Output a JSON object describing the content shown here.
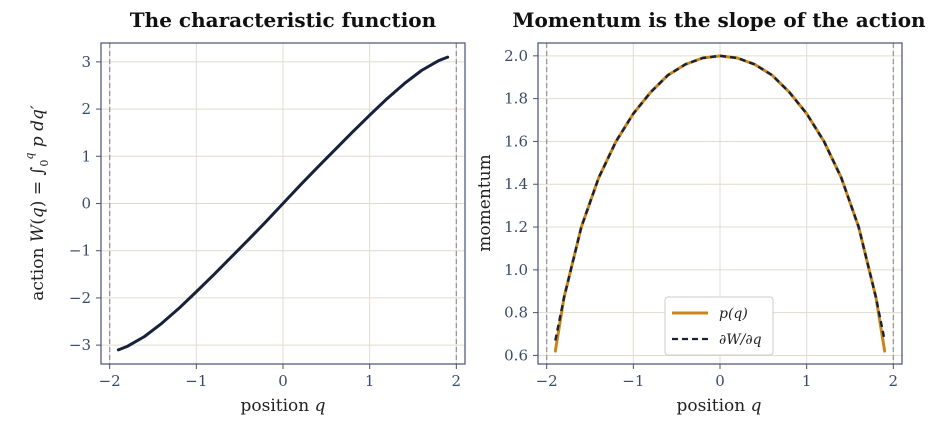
{
  "chart_data": [
    {
      "type": "line",
      "title": "The characteristic function",
      "xlabel": "position  q",
      "ylabel": "action  W(q) = ∫₀^q p dq′",
      "xlim": [
        -2.1,
        2.1
      ],
      "ylim": [
        -3.4,
        3.4
      ],
      "xticks": [
        -2,
        -1,
        0,
        1,
        2
      ],
      "xtick_labels": [
        "−2",
        "−1",
        "0",
        "1",
        "2"
      ],
      "yticks": [
        -3,
        -2,
        -1,
        0,
        1,
        2,
        3
      ],
      "ytick_labels": [
        "−3",
        "−2",
        "−1",
        "0",
        "1",
        "2",
        "3"
      ],
      "grid": true,
      "vertical_dashed_lines_x": [
        -2,
        2
      ],
      "series": [
        {
          "color": "#16213a",
          "x": [
            -1.9,
            -1.8,
            -1.6,
            -1.4,
            -1.2,
            -1.0,
            -0.8,
            -0.6,
            -0.4,
            -0.2,
            0,
            0.2,
            0.4,
            0.6,
            0.8,
            1.0,
            1.2,
            1.4,
            1.6,
            1.8,
            1.9
          ],
          "y": [
            -3.1,
            -3.03,
            -2.82,
            -2.54,
            -2.22,
            -1.87,
            -1.51,
            -1.14,
            -0.77,
            -0.39,
            0,
            0.39,
            0.77,
            1.14,
            1.51,
            1.87,
            2.22,
            2.54,
            2.82,
            3.03,
            3.1
          ]
        }
      ]
    },
    {
      "type": "line",
      "title": "Momentum is the slope of the action",
      "xlabel": "position  q",
      "ylabel": "momentum",
      "xlim": [
        -2.1,
        2.1
      ],
      "ylim": [
        0.56,
        2.06
      ],
      "xticks": [
        -2,
        -1,
        0,
        1,
        2
      ],
      "xtick_labels": [
        "−2",
        "−1",
        "0",
        "1",
        "2"
      ],
      "yticks": [
        0.6,
        0.8,
        1.0,
        1.2,
        1.4,
        1.6,
        1.8,
        2.0
      ],
      "ytick_labels": [
        "0.6",
        "0.8",
        "1.0",
        "1.2",
        "1.4",
        "1.6",
        "1.8",
        "2.0"
      ],
      "grid": true,
      "vertical_dashed_lines_x": [
        -2,
        2
      ],
      "legend_position": "lower center",
      "series": [
        {
          "name": "p(q)",
          "color": "#c8861a",
          "style": "solid",
          "x": [
            -1.9,
            -1.8,
            -1.6,
            -1.4,
            -1.2,
            -1.0,
            -0.8,
            -0.6,
            -0.4,
            -0.2,
            0,
            0.2,
            0.4,
            0.6,
            0.8,
            1.0,
            1.2,
            1.4,
            1.6,
            1.8,
            1.9
          ],
          "y": [
            0.62,
            0.87,
            1.2,
            1.43,
            1.6,
            1.73,
            1.83,
            1.91,
            1.96,
            1.99,
            2.0,
            1.99,
            1.96,
            1.91,
            1.83,
            1.73,
            1.6,
            1.43,
            1.2,
            0.87,
            0.62
          ]
        },
        {
          "name": "∂W/∂q",
          "color": "#16213a",
          "style": "dashed",
          "x": [
            -1.9,
            -1.8,
            -1.6,
            -1.4,
            -1.2,
            -1.0,
            -0.8,
            -0.6,
            -0.4,
            -0.2,
            0,
            0.2,
            0.4,
            0.6,
            0.8,
            1.0,
            1.2,
            1.4,
            1.6,
            1.8,
            1.9
          ],
          "y": [
            0.67,
            0.87,
            1.2,
            1.43,
            1.6,
            1.73,
            1.83,
            1.91,
            1.96,
            1.99,
            2.0,
            1.99,
            1.96,
            1.91,
            1.83,
            1.73,
            1.6,
            1.43,
            1.2,
            0.87,
            0.67
          ]
        }
      ]
    }
  ]
}
